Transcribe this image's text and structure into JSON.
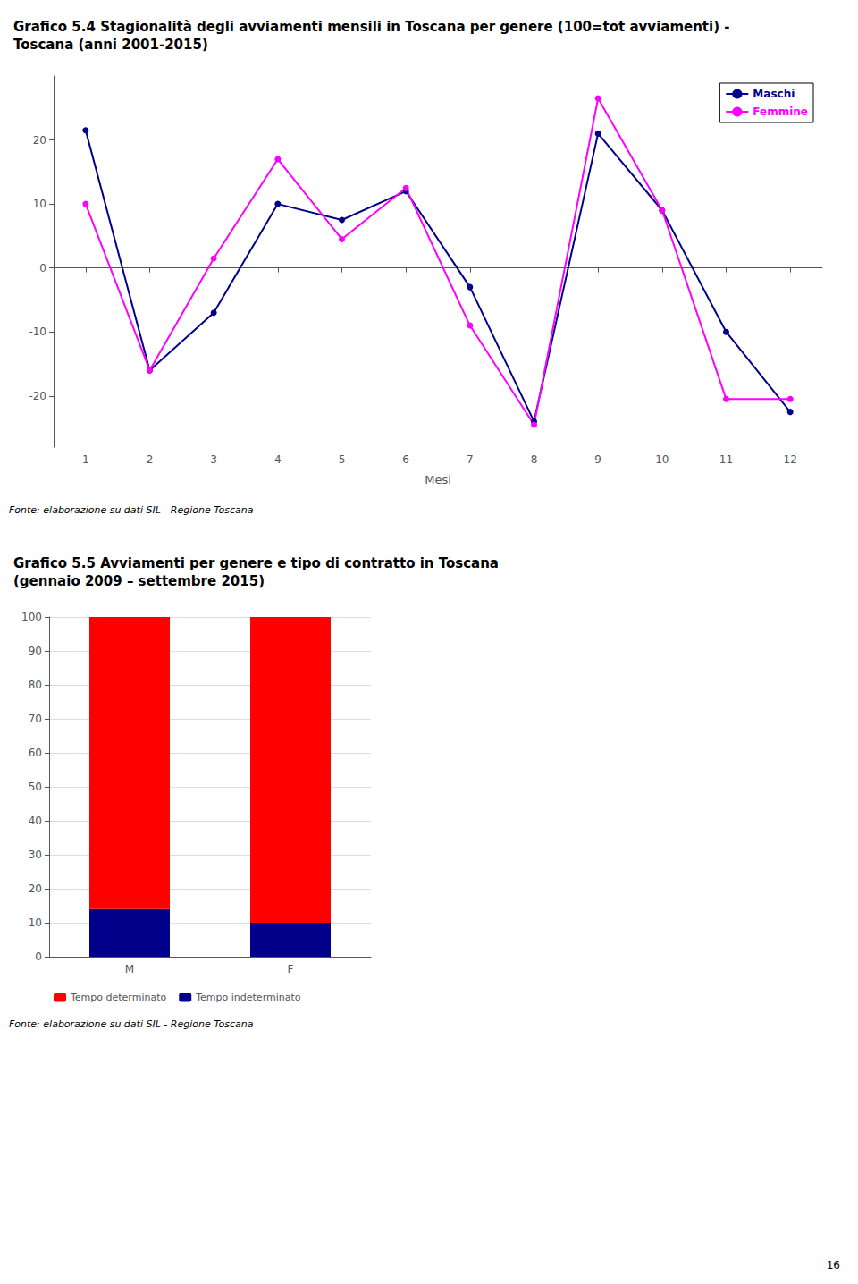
{
  "chart_data": [
    {
      "type": "line",
      "title": "Grafico 5.4 Stagionalità degli avviamenti mensili in Toscana per genere (100=tot avviamenti) -\nToscana (anni 2001-2015)",
      "xlabel": "Mesi",
      "x": [
        1,
        2,
        3,
        4,
        5,
        6,
        7,
        8,
        9,
        10,
        11,
        12
      ],
      "xlim": [
        0.5,
        12.5
      ],
      "xticks": [
        1,
        2,
        3,
        4,
        5,
        6,
        7,
        8,
        9,
        10,
        11,
        12
      ],
      "ylim": [
        -28,
        30
      ],
      "yticks": [
        -20,
        -10,
        0,
        10,
        20
      ],
      "grid": false,
      "legend": "upper right",
      "marker": "circle",
      "series": [
        {
          "name": "Maschi",
          "color": "#00008B",
          "values": [
            21.5,
            -16.0,
            -7.0,
            10.0,
            7.5,
            12.0,
            -3.0,
            -24.0,
            21.0,
            9.0,
            -10.0,
            -22.5
          ]
        },
        {
          "name": "Femmine",
          "color": "#FF00FF",
          "values": [
            10.0,
            -16.0,
            1.5,
            17.0,
            4.5,
            12.5,
            -9.0,
            -24.5,
            26.5,
            9.0,
            -20.5,
            -20.5
          ]
        }
      ],
      "annotations": [
        "Fonte: elaborazione su dati SIL - Regione Toscana"
      ]
    },
    {
      "type": "bar",
      "title": "Grafico 5.5 Avviamenti per genere e tipo di contratto in Toscana\n(gennaio 2009 – settembre 2015)",
      "stacked": true,
      "categories": [
        "M",
        "F"
      ],
      "ylim": [
        0,
        100
      ],
      "yticks": [
        0,
        10,
        20,
        30,
        40,
        50,
        60,
        70,
        80,
        90,
        100
      ],
      "grid": true,
      "legend": "bottom",
      "series": [
        {
          "name": "Tempo indeterminato",
          "color": "#00008B",
          "values": [
            14,
            10
          ]
        },
        {
          "name": "Tempo determinato",
          "color": "#FF0000",
          "values": [
            86,
            90
          ]
        }
      ],
      "annotations": [
        "Fonte: elaborazione su dati SIL - Regione Toscana",
        "16"
      ]
    }
  ]
}
